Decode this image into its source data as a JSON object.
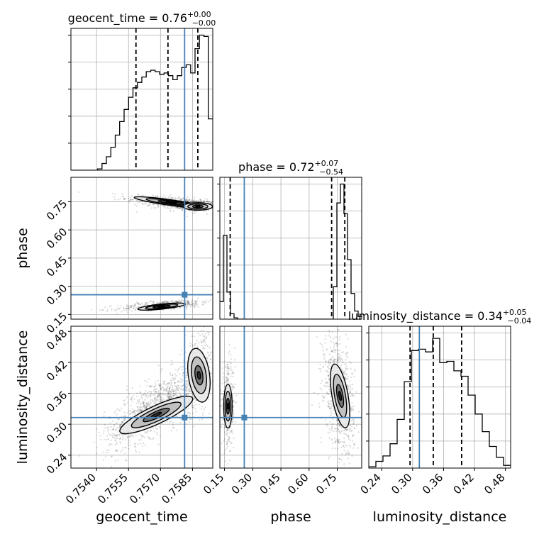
{
  "chart_data": {
    "type": "corner",
    "grid": true,
    "truth_color": "#4682b4",
    "hist_color": "#000000",
    "parameters": [
      {
        "name": "geocent_time",
        "label": "geocent_time",
        "title_text": "geocent_time = 0.76",
        "title_sup": "+0.00",
        "title_sub": "−0.00",
        "range": [
          0.7528,
          0.75945
        ],
        "ticks": [
          0.754,
          0.7555,
          0.757,
          0.7585
        ],
        "tick_labels": [
          "0.7540",
          "0.7555",
          "0.7570",
          "0.7585"
        ],
        "quantiles": [
          0.75585,
          0.75735,
          0.75875
        ],
        "truth": 0.75813,
        "hist_ylim": [
          0,
          1.05
        ],
        "hist_counts": [
          0,
          0,
          0,
          0,
          0,
          0,
          0.01,
          0.05,
          0.1,
          0.17,
          0.26,
          0.36,
          0.45,
          0.54,
          0.61,
          0.65,
          0.69,
          0.73,
          0.74,
          0.73,
          0.71,
          0.72,
          0.7,
          0.67,
          0.7,
          0.76,
          0.78,
          0.72,
          0.9,
          1.0,
          0.99,
          0.38
        ]
      },
      {
        "name": "phase",
        "label": "phase",
        "title_text": "phase = 0.72",
        "title_sup": "+0.07",
        "title_sub": "−0.54",
        "range": [
          0.125,
          0.88
        ],
        "ticks": [
          0.15,
          0.3,
          0.45,
          0.6,
          0.75
        ],
        "tick_labels": [
          "0.15",
          "0.30",
          "0.45",
          "0.60",
          "0.75"
        ],
        "quantiles": [
          0.18,
          0.72,
          0.79
        ],
        "truth": 0.255,
        "hist_ylim": [
          0,
          1.05
        ],
        "hist_counts": [
          0.13,
          0.62,
          0.2,
          0.04,
          0.01,
          0,
          0,
          0,
          0,
          0,
          0,
          0,
          0,
          0,
          0,
          0,
          0,
          0,
          0,
          0,
          0,
          0,
          0,
          0,
          0,
          0,
          0,
          0,
          0,
          0,
          0,
          0,
          0.24,
          0.86,
          1.0,
          0.78,
          0.44,
          0.19,
          0.06,
          0.02
        ]
      },
      {
        "name": "luminosity_distance",
        "label": "luminosity_distance",
        "title_text": "luminosity_distance = 0.34",
        "title_sup": "+0.05",
        "title_sub": "−0.04",
        "range": [
          0.215,
          0.49
        ],
        "ticks": [
          0.24,
          0.3,
          0.36,
          0.42,
          0.48
        ],
        "tick_labels": [
          "0.24",
          "0.30",
          "0.36",
          "0.42",
          "0.48"
        ],
        "quantiles": [
          0.295,
          0.34,
          0.395
        ],
        "truth": 0.313,
        "hist_ylim": [
          0,
          1.05
        ],
        "hist_counts": [
          0.01,
          0.05,
          0.09,
          0.18,
          0.36,
          0.64,
          0.87,
          0.88,
          0.86,
          0.96,
          0.78,
          0.79,
          0.72,
          0.68,
          0.54,
          0.4,
          0.27,
          0.16,
          0.08,
          0.02
        ]
      }
    ]
  }
}
